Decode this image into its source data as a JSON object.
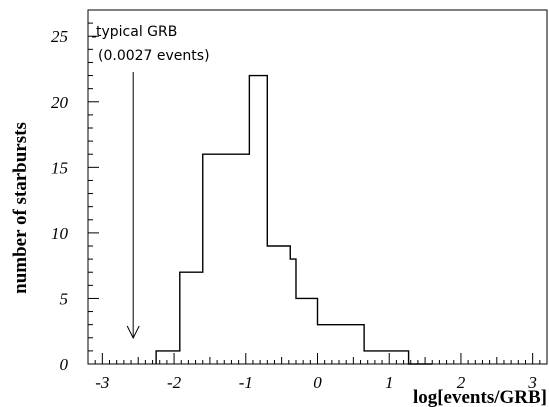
{
  "chart_data": {
    "type": "bar",
    "style": "step-histogram",
    "xlabel": "log[events/GRB]",
    "ylabel": "number of starbursts",
    "xlim": [
      -3.2,
      3.2
    ],
    "ylim": [
      0,
      27
    ],
    "x_ticks": [
      "-3",
      "-2",
      "-1",
      "0",
      "1",
      "2",
      "3"
    ],
    "x_tick_values": [
      -3,
      -2,
      -1,
      0,
      1,
      2,
      3
    ],
    "y_ticks": [
      "0",
      "5",
      "10",
      "15",
      "20",
      "25"
    ],
    "y_tick_values": [
      0,
      5,
      10,
      15,
      20,
      25
    ],
    "bin_edges": [
      -2.25,
      -1.92,
      -1.6,
      -0.95,
      -0.7,
      -0.38,
      -0.3,
      0,
      0.65,
      1.27,
      1.6
    ],
    "values": [
      1,
      7,
      16,
      22,
      9,
      8,
      5,
      3,
      1,
      0
    ],
    "annotation": {
      "line1": "typical GRB",
      "line2": "(0.0027 events)",
      "x": -2.57
    },
    "grid": false,
    "legend": "none"
  }
}
